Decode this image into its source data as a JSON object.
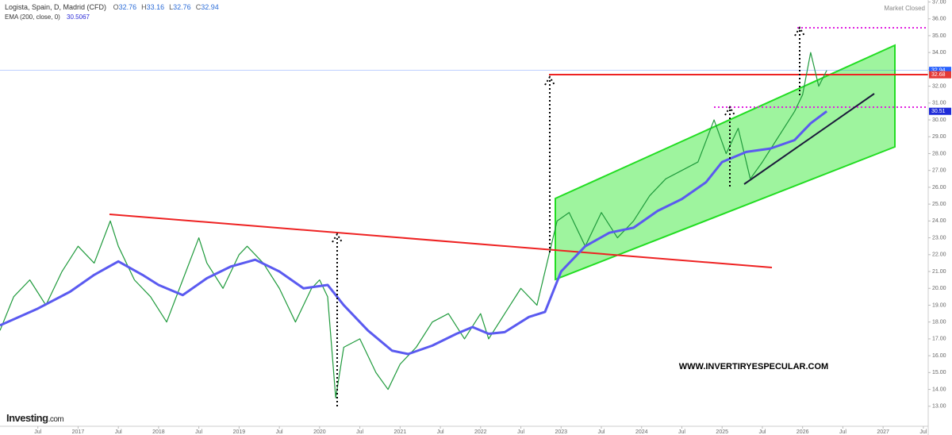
{
  "header": {
    "title": "Logista, Spain, D, Madrid (CFD)",
    "ohlc": [
      {
        "label": "O",
        "value": "32.76"
      },
      {
        "label": "H",
        "value": "33.16"
      },
      {
        "label": "L",
        "value": "32.76"
      },
      {
        "label": "C",
        "value": "32.94"
      }
    ],
    "indicator": "EMA (200, close, 0)",
    "indicator_value": "30.5067",
    "status": "Market Closed",
    "logo": "Investing",
    "logo_suffix": ".com"
  },
  "chart_data": {
    "type": "line",
    "watermark": "WWW.INVERTIRYESPECULAR.COM",
    "xlim": [
      2016.03,
      2027.56
    ],
    "xticks": [
      {
        "value": 2016.5,
        "label": "Jul"
      },
      2017,
      {
        "value": 2017.5,
        "label": "Jul"
      },
      2018,
      {
        "value": 2018.5,
        "label": "Jul"
      },
      2019,
      {
        "value": 2019.5,
        "label": "Jul"
      },
      2020,
      {
        "value": 2020.5,
        "label": "Jul"
      },
      2021,
      {
        "value": 2021.5,
        "label": "Jul"
      },
      2022,
      {
        "value": 2022.5,
        "label": "Jul"
      },
      2023,
      {
        "value": 2023.5,
        "label": "Jul"
      },
      2024,
      {
        "value": 2024.5,
        "label": "Jul"
      },
      2025,
      {
        "value": 2025.5,
        "label": "Jul"
      },
      2026,
      {
        "value": 2026.5,
        "label": "Jul"
      },
      2027,
      {
        "value": 2027.5,
        "label": "Jul"
      }
    ],
    "ylim": [
      12,
      37
    ],
    "yticks": [
      {
        "value": 13,
        "label": "13.00"
      },
      {
        "value": 14,
        "label": "14.00"
      },
      {
        "value": 15,
        "label": "15.00"
      },
      {
        "value": 16,
        "label": "16.00"
      },
      {
        "value": 17,
        "label": "17.00"
      },
      {
        "value": 18,
        "label": "18.00"
      },
      {
        "value": 19,
        "label": "19.00"
      },
      {
        "value": 20,
        "label": "20.00"
      },
      {
        "value": 21,
        "label": "21.00"
      },
      {
        "value": 22,
        "label": "22.00"
      },
      {
        "value": 23,
        "label": "23.00"
      },
      {
        "value": 24,
        "label": "24.00"
      },
      {
        "value": 25,
        "label": "25.00"
      },
      {
        "value": 26,
        "label": "26.00"
      },
      {
        "value": 27,
        "label": "27.00"
      },
      {
        "value": 28,
        "label": "28.00"
      },
      {
        "value": 29,
        "label": "29.00"
      },
      {
        "value": 30,
        "label": "30.00"
      },
      {
        "value": 31,
        "label": "31.00"
      },
      {
        "value": 32,
        "label": "32.00"
      },
      {
        "value": 33,
        "label": "33.00"
      },
      {
        "value": 34,
        "label": "34.00"
      },
      {
        "value": 35,
        "label": "35.00"
      },
      {
        "value": 36,
        "label": "36.00"
      },
      {
        "value": 37,
        "label": "37.00"
      }
    ],
    "series": [
      {
        "color": "#1f9a3c",
        "x": [
          2016.03,
          2016.2,
          2016.4,
          2016.6,
          2016.8,
          2017.0,
          2017.2,
          2017.4,
          2017.5,
          2017.7,
          2017.9,
          2018.1,
          2018.3,
          2018.5,
          2018.6,
          2018.8,
          2019.0,
          2019.1,
          2019.3,
          2019.5,
          2019.7,
          2019.9,
          2020.0,
          2020.1,
          2020.2,
          2020.3,
          2020.5,
          2020.7,
          2020.85,
          2021.0,
          2021.2,
          2021.4,
          2021.6,
          2021.8,
          2022.0,
          2022.1,
          2022.3,
          2022.5,
          2022.7,
          2022.85,
          2022.95,
          2023.1,
          2023.3,
          2023.5,
          2023.7,
          2023.9,
          2024.1,
          2024.3,
          2024.5,
          2024.7,
          2024.9,
          2025.05,
          2025.2,
          2025.35,
          2025.5,
          2025.7,
          2025.9,
          2026.0,
          2026.1,
          2026.2,
          2026.3
        ],
        "values": [
          17.5,
          19.5,
          20.5,
          19.0,
          21.0,
          22.5,
          21.5,
          24.0,
          22.5,
          20.5,
          19.5,
          18.0,
          20.5,
          23.0,
          21.5,
          20.0,
          22.0,
          22.5,
          21.5,
          20.0,
          18.0,
          20.0,
          20.5,
          19.5,
          13.5,
          16.5,
          17.0,
          15.0,
          14.0,
          15.5,
          16.5,
          18.0,
          18.5,
          17.0,
          18.5,
          17.0,
          18.5,
          20.0,
          19.0,
          22.0,
          24.0,
          24.5,
          22.5,
          24.5,
          23.0,
          24.0,
          25.5,
          26.5,
          27.0,
          27.5,
          30.0,
          28.0,
          29.5,
          26.5,
          27.5,
          29.0,
          30.5,
          31.5,
          34.0,
          32.0,
          32.94
        ]
      },
      {
        "color": "#5a5af0",
        "x": [
          2016.03,
          2016.5,
          2016.9,
          2017.2,
          2017.5,
          2017.8,
          2018.0,
          2018.3,
          2018.6,
          2018.9,
          2019.2,
          2019.5,
          2019.8,
          2020.1,
          2020.3,
          2020.6,
          2020.9,
          2021.1,
          2021.4,
          2021.7,
          2021.9,
          2022.1,
          2022.3,
          2022.6,
          2022.8,
          2023.0,
          2023.3,
          2023.6,
          2023.9,
          2024.2,
          2024.5,
          2024.8,
          2025.0,
          2025.3,
          2025.6,
          2025.9,
          2026.1,
          2026.3
        ],
        "values": [
          17.8,
          18.8,
          19.8,
          20.8,
          21.6,
          20.8,
          20.2,
          19.6,
          20.6,
          21.3,
          21.7,
          21.0,
          20.0,
          20.2,
          19.0,
          17.5,
          16.3,
          16.1,
          16.6,
          17.3,
          17.7,
          17.3,
          17.4,
          18.3,
          18.6,
          21.0,
          22.5,
          23.3,
          23.6,
          24.6,
          25.3,
          26.3,
          27.5,
          28.1,
          28.3,
          28.8,
          29.8,
          30.51
        ]
      }
    ],
    "price_markers": [
      {
        "value": 32.94,
        "color": "#2962ff"
      },
      {
        "value": 32.68,
        "color": "#e53935"
      },
      {
        "value": 30.51,
        "color": "#1e2bd8"
      }
    ]
  }
}
